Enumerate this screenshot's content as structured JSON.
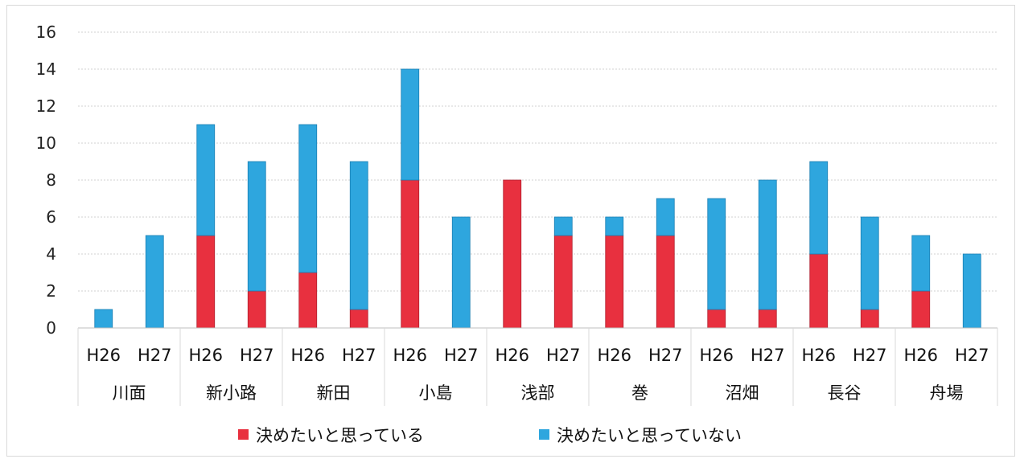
{
  "chart_data": {
    "type": "bar",
    "stacked": true,
    "title": "",
    "xlabel": "",
    "ylabel": "",
    "ylim": [
      0,
      16
    ],
    "yticks": [
      0,
      2,
      4,
      6,
      8,
      10,
      12,
      14,
      16
    ],
    "grid": true,
    "legend_position": "bottom",
    "groups": [
      "川面",
      "新小路",
      "新田",
      "小島",
      "浅部",
      "巻",
      "沼畑",
      "長谷",
      "舟場"
    ],
    "years": [
      "H26",
      "H27"
    ],
    "categories": [
      "川面 H26",
      "川面 H27",
      "新小路 H26",
      "新小路 H27",
      "新田 H26",
      "新田 H27",
      "小島 H26",
      "小島 H27",
      "浅部 H26",
      "浅部 H27",
      "巻 H26",
      "巻 H27",
      "沼畑 H26",
      "沼畑 H27",
      "長谷 H26",
      "長谷 H27",
      "舟場 H26",
      "舟場 H27"
    ],
    "series": [
      {
        "name": "決めたいと思っている",
        "color": "#e8303f",
        "values": [
          0,
          0,
          5,
          2,
          3,
          1,
          8,
          0,
          8,
          5,
          5,
          5,
          1,
          1,
          4,
          1,
          2,
          0
        ]
      },
      {
        "name": "決めたいと思っていない",
        "color": "#2ea6de",
        "values": [
          1,
          5,
          6,
          7,
          8,
          8,
          6,
          6,
          0,
          1,
          1,
          2,
          6,
          7,
          5,
          5,
          3,
          4
        ]
      }
    ]
  }
}
